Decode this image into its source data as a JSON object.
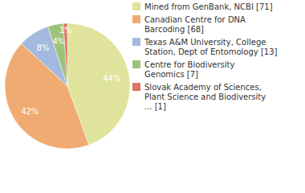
{
  "chart_data": {
    "type": "pie",
    "categories": [
      "Mined from GenBank, NCBI [71]",
      "Canadian Centre for DNA\nBarcoding [68]",
      "Texas A&M University, College\nStation, Dept of Entomology [13]",
      "Centre for Biodiversity\nGenomics [7]",
      "Slovak Academy of Sciences,\nPlant Science and Biodiversity\n... [1]"
    ],
    "values": [
      44,
      42,
      8,
      4,
      1
    ],
    "value_labels": [
      "44%",
      "42%",
      "8%",
      "4%",
      "1%"
    ],
    "colors": [
      "#dfe39b",
      "#f0ab72",
      "#a4b9df",
      "#9dc37b",
      "#df735d"
    ],
    "data_labels": true,
    "legend": "top-right"
  }
}
